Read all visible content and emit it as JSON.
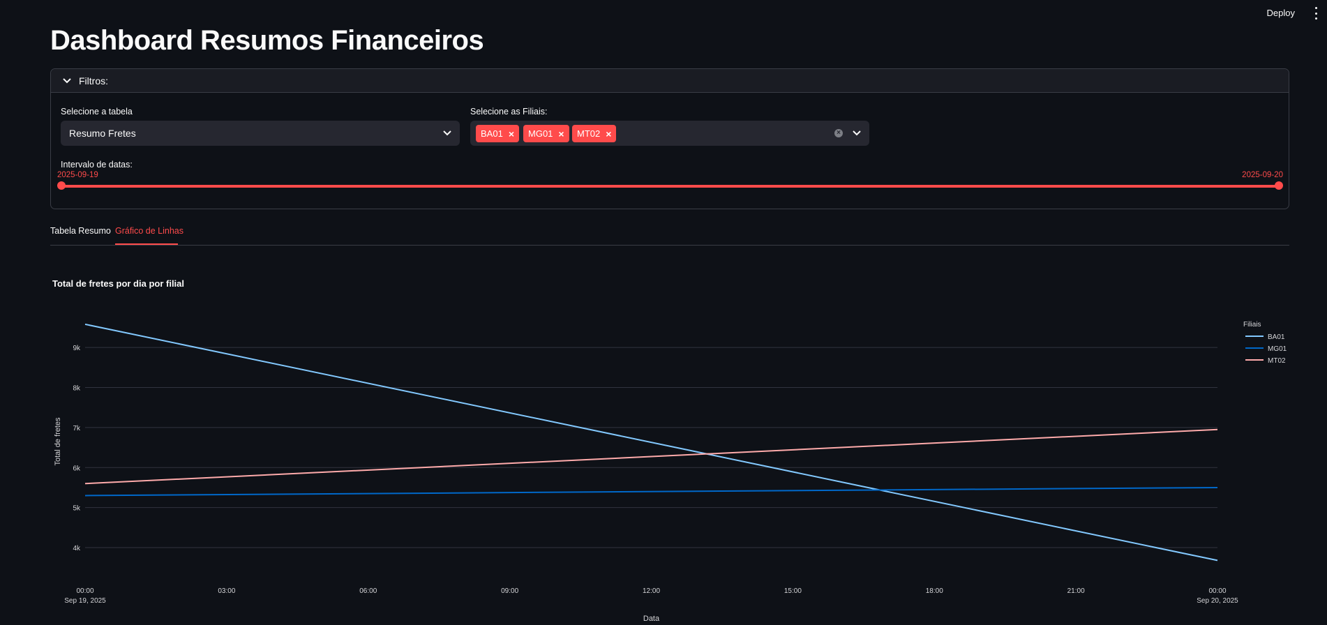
{
  "header": {
    "deploy_label": "Deploy"
  },
  "page_title": "Dashboard Resumos Financeiros",
  "filters": {
    "title": "Filtros:",
    "table_select": {
      "label": "Selecione a tabela",
      "value": "Resumo Fretes"
    },
    "branch_select": {
      "label": "Selecione as Filiais:",
      "tags": [
        "BA01",
        "MG01",
        "MT02"
      ]
    },
    "date_range": {
      "label": "Intervalo de datas:",
      "start": "2025-09-19",
      "end": "2025-09-20"
    }
  },
  "tabs": [
    {
      "label": "Tabela Resumo",
      "active": false
    },
    {
      "label": "Gráfico de Linhas",
      "active": true
    }
  ],
  "colors": {
    "accent": "#ff4b4b",
    "BA01": "#83c9ff",
    "MG01": "#0068c9",
    "MT02": "#ffabab"
  },
  "chart_data": {
    "type": "line",
    "title": "Total de fretes por dia por filial",
    "xlabel": "Data",
    "ylabel": "Total de fretes",
    "x": [
      "2025-09-19 00:00",
      "2025-09-20 00:00"
    ],
    "xticks": [
      "00:00\nSep 19, 2025",
      "03:00",
      "06:00",
      "09:00",
      "12:00",
      "15:00",
      "18:00",
      "21:00",
      "00:00\nSep 20, 2025"
    ],
    "yticks": [
      "4k",
      "5k",
      "6k",
      "7k",
      "8k",
      "9k"
    ],
    "ylim": [
      3600,
      9700
    ],
    "legend_title": "Filiais",
    "legend_position": "top-right",
    "grid": true,
    "series": [
      {
        "name": "BA01",
        "values": [
          9580,
          3680
        ]
      },
      {
        "name": "MG01",
        "values": [
          5300,
          5500
        ]
      },
      {
        "name": "MT02",
        "values": [
          5600,
          6950
        ]
      }
    ]
  }
}
